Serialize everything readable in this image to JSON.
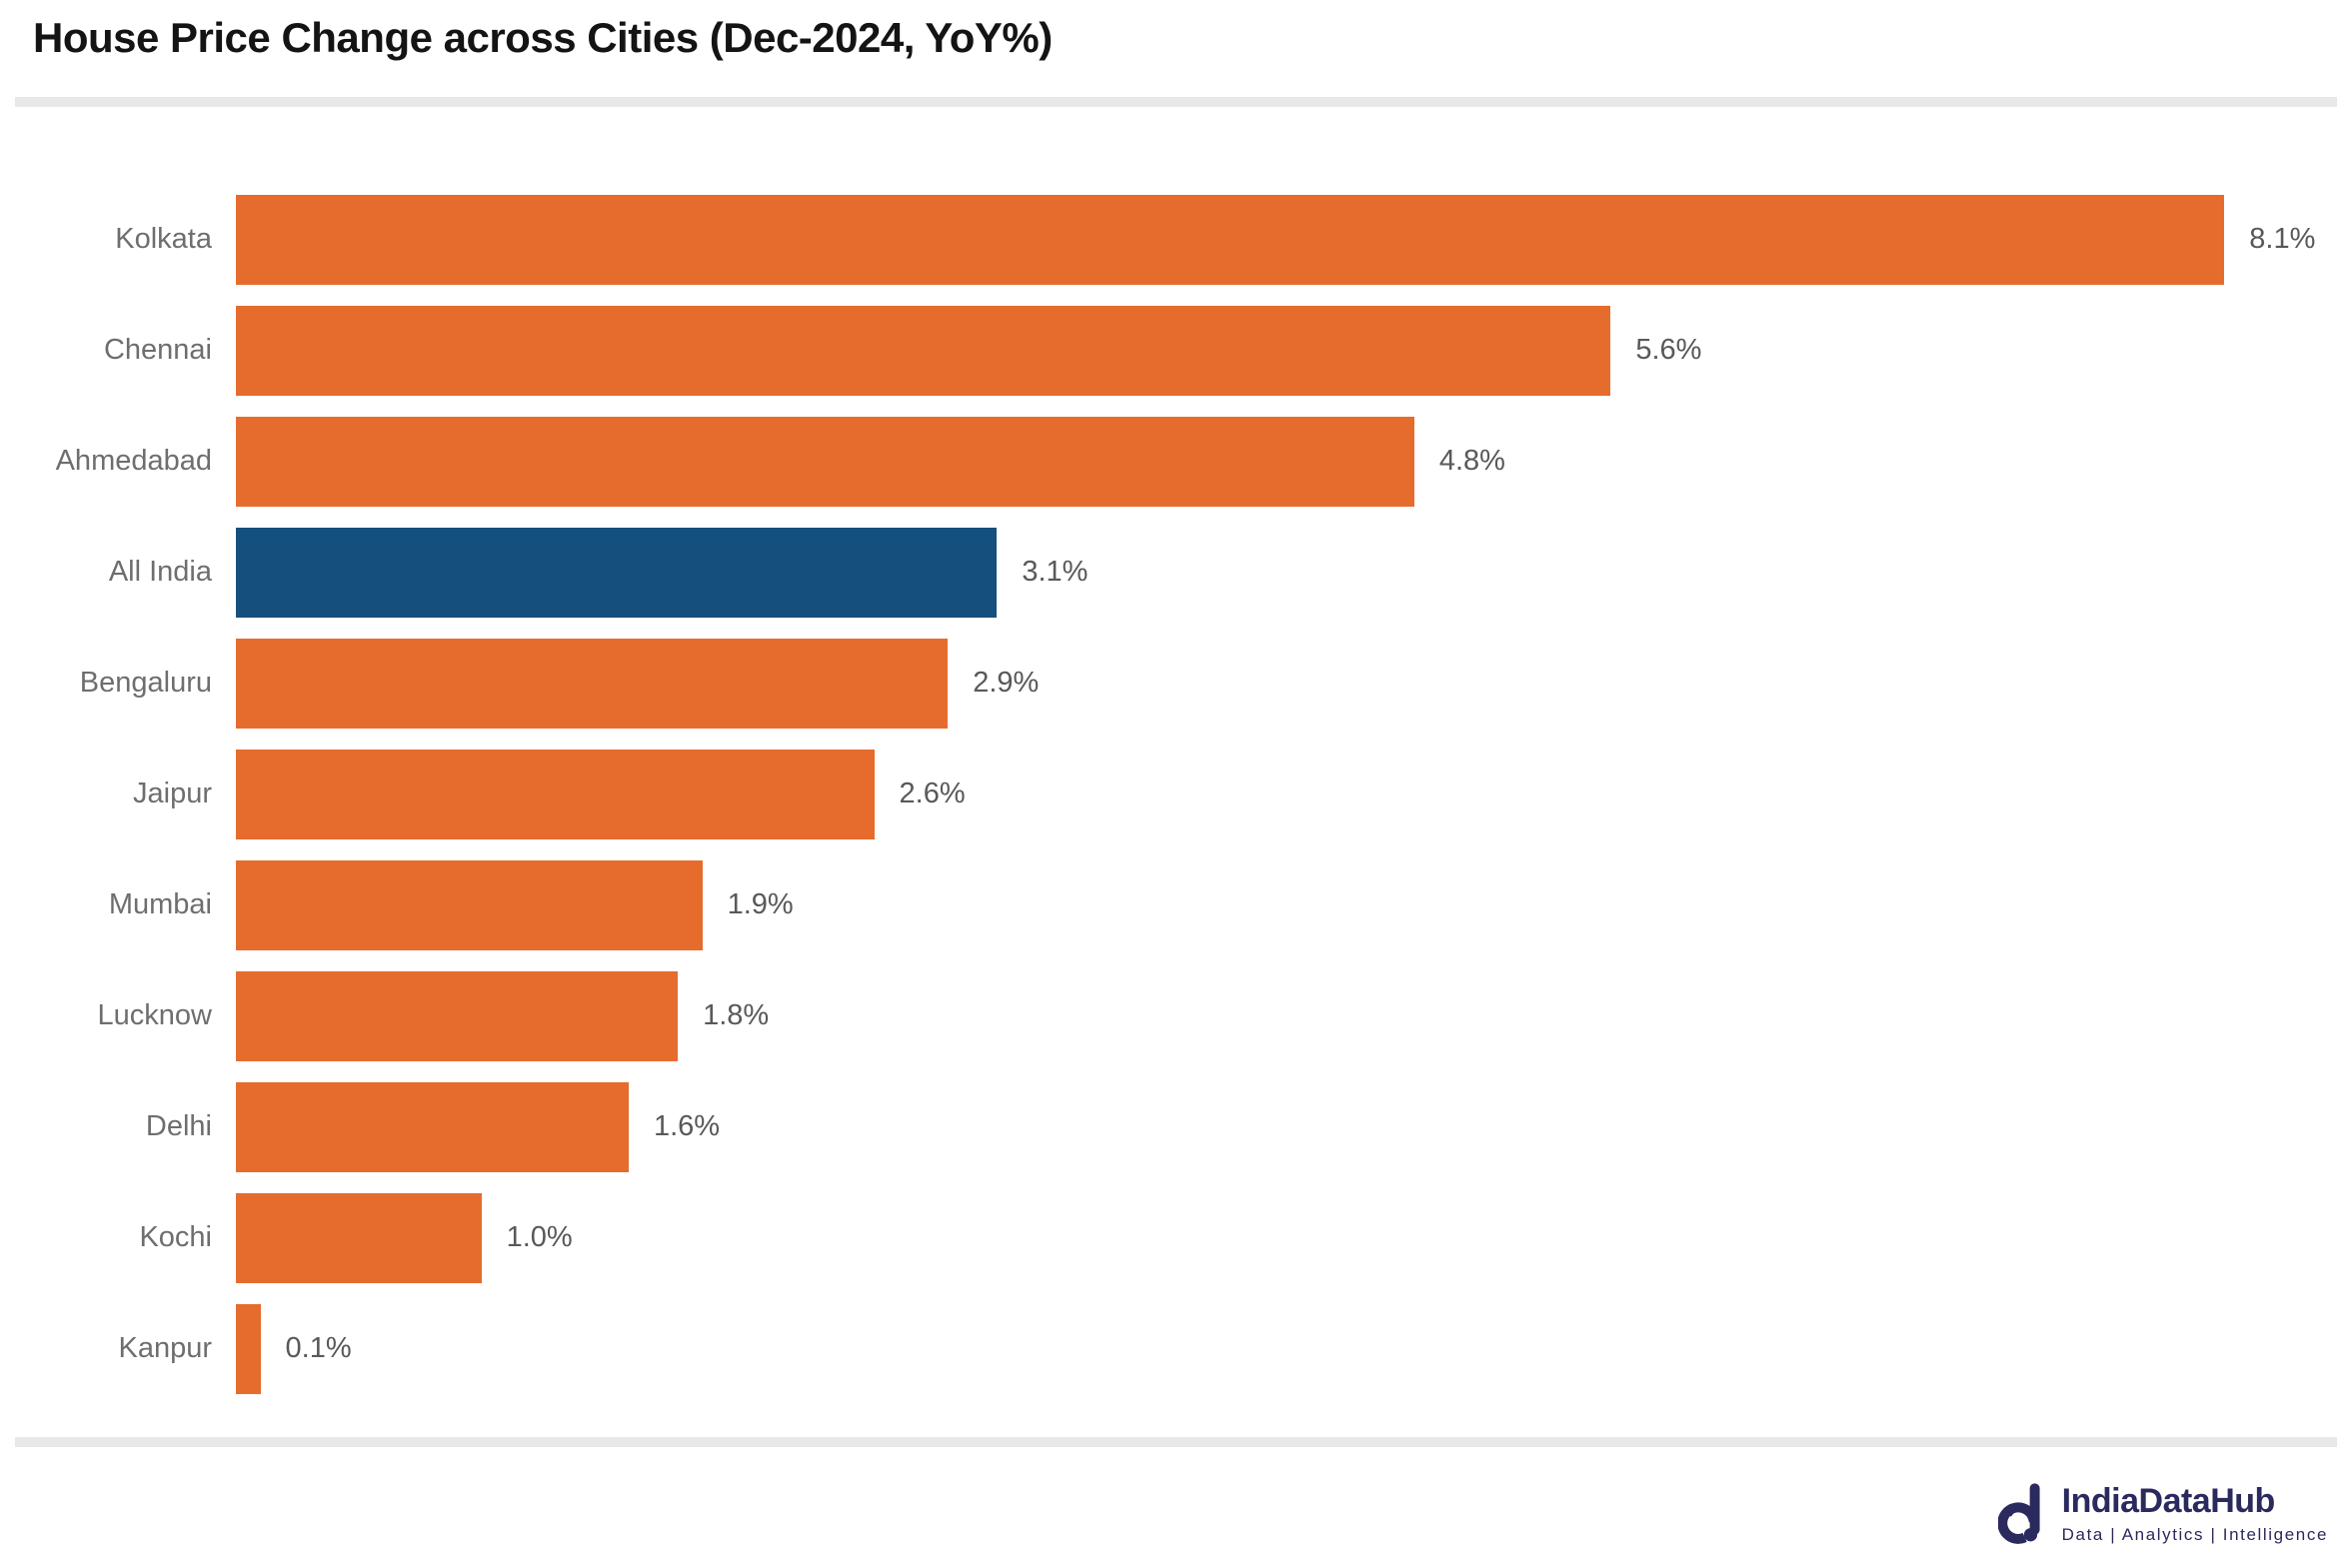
{
  "header": {
    "title": "House Price Change across Cities (Dec-2024, YoY%)"
  },
  "chart_data": {
    "type": "bar",
    "orientation": "horizontal",
    "title": "House Price Change across Cities (Dec-2024, YoY%)",
    "xlabel": "",
    "ylabel": "",
    "grid": false,
    "legend": false,
    "categories": [
      "Kolkata",
      "Chennai",
      "Ahmedabad",
      "All India",
      "Bengaluru",
      "Jaipur",
      "Mumbai",
      "Lucknow",
      "Delhi",
      "Kochi",
      "Kanpur"
    ],
    "values": [
      8.1,
      5.6,
      4.8,
      3.1,
      2.9,
      2.6,
      1.9,
      1.8,
      1.6,
      1.0,
      0.1
    ],
    "value_labels": [
      "8.1%",
      "5.6%",
      "4.8%",
      "3.1%",
      "2.9%",
      "2.6%",
      "1.9%",
      "1.8%",
      "1.6%",
      "1.0%",
      "0.1%"
    ],
    "highlight_category": "All India",
    "axis_max": 8.62,
    "bar_color": "#E66C2E",
    "highlight_color": "#154F7D"
  },
  "footer": {
    "brand": "IndiaDataHub",
    "tagline": "Data | Analytics | Intelligence",
    "brand_color": "#2B2A5E"
  }
}
